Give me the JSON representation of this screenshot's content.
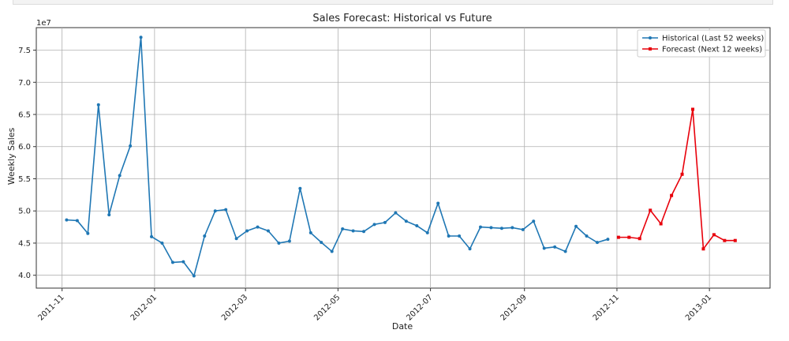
{
  "chart_data": {
    "type": "line",
    "title": "Sales Forecast: Historical vs Future",
    "xlabel": "Date",
    "ylabel": "Weekly Sales",
    "y_offset_text": "1e7",
    "y_tick_labels": [
      "4.0",
      "4.5",
      "5.0",
      "5.5",
      "6.0",
      "6.5",
      "7.0",
      "7.5"
    ],
    "x_tick_labels": [
      "2011-11",
      "2012-01",
      "2012-03",
      "2012-05",
      "2012-07",
      "2012-09",
      "2012-11",
      "2013-01"
    ],
    "ylim": [
      3.8,
      7.85
    ],
    "grid": true,
    "legend": "top-right",
    "colors": {
      "historical": "#1f77b4",
      "forecast": "#e8000b"
    },
    "series": [
      {
        "name": "Historical (Last 52 weeks)",
        "x": [
          "2011-11-04",
          "2011-11-11",
          "2011-11-18",
          "2011-11-25",
          "2011-12-02",
          "2011-12-09",
          "2011-12-16",
          "2011-12-23",
          "2011-12-30",
          "2012-01-06",
          "2012-01-13",
          "2012-01-20",
          "2012-01-27",
          "2012-02-03",
          "2012-02-10",
          "2012-02-17",
          "2012-02-24",
          "2012-03-02",
          "2012-03-09",
          "2012-03-16",
          "2012-03-23",
          "2012-03-30",
          "2012-04-06",
          "2012-04-13",
          "2012-04-20",
          "2012-04-27",
          "2012-05-04",
          "2012-05-11",
          "2012-05-18",
          "2012-05-25",
          "2012-06-01",
          "2012-06-08",
          "2012-06-15",
          "2012-06-22",
          "2012-06-29",
          "2012-07-06",
          "2012-07-13",
          "2012-07-20",
          "2012-07-27",
          "2012-08-03",
          "2012-08-10",
          "2012-08-17",
          "2012-08-24",
          "2012-08-31",
          "2012-09-07",
          "2012-09-14",
          "2012-09-21",
          "2012-09-28",
          "2012-10-05",
          "2012-10-12",
          "2012-10-19",
          "2012-10-26"
        ],
        "values": [
          4.86,
          4.85,
          4.65,
          6.65,
          4.94,
          5.55,
          6.01,
          7.7,
          4.6,
          4.5,
          4.2,
          4.21,
          3.99,
          4.61,
          5.0,
          5.02,
          4.57,
          4.69,
          4.75,
          4.69,
          4.5,
          4.53,
          5.35,
          4.66,
          4.51,
          4.37,
          4.72,
          4.69,
          4.68,
          4.79,
          4.82,
          4.97,
          4.84,
          4.77,
          4.66,
          5.12,
          4.61,
          4.61,
          4.41,
          4.75,
          4.74,
          4.73,
          4.74,
          4.71,
          4.84,
          4.42,
          4.44,
          4.37,
          4.76,
          4.61,
          4.51,
          4.56
        ]
      },
      {
        "name": "Forecast (Next 12 weeks)",
        "x": [
          "2012-11-02",
          "2012-11-09",
          "2012-11-16",
          "2012-11-23",
          "2012-11-30",
          "2012-12-07",
          "2012-12-14",
          "2012-12-21",
          "2012-12-28",
          "2013-01-04",
          "2013-01-11",
          "2013-01-18"
        ],
        "values": [
          4.59,
          4.59,
          4.57,
          5.01,
          4.8,
          5.24,
          5.57,
          6.58,
          4.41,
          4.63,
          4.54,
          4.54
        ]
      }
    ]
  }
}
